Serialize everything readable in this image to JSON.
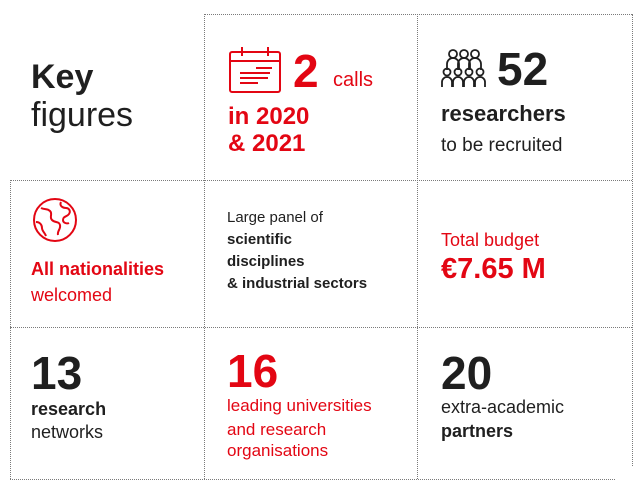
{
  "title": {
    "line1": "Key",
    "line2": "figures"
  },
  "calls": {
    "number": "2",
    "label": "calls",
    "years_line1": "in 2020",
    "years_line2": "& 2021",
    "icon": "calendar-icon"
  },
  "researchers": {
    "number": "52",
    "label": "researchers",
    "sub": "to be recruited",
    "icon": "people-group-icon"
  },
  "nationalities": {
    "label": "All nationalities",
    "sub": "welcomed",
    "icon": "globe-icon"
  },
  "panel": {
    "line1": "Large panel of",
    "line2": "scientific",
    "line3": "disciplines",
    "line4": "& industrial sectors"
  },
  "budget": {
    "label": "Total budget",
    "value": "€7.65 M"
  },
  "networks": {
    "number": "13",
    "line1": "research",
    "line2": "networks"
  },
  "universities": {
    "number": "16",
    "line1": "leading universities",
    "line2": "and research",
    "line3": "organisations"
  },
  "partners": {
    "number": "20",
    "line1": "extra-academic",
    "line2": "partners"
  },
  "colors": {
    "accent": "#e30613",
    "text": "#1f1f1f",
    "grid": "#7a7a7a"
  }
}
